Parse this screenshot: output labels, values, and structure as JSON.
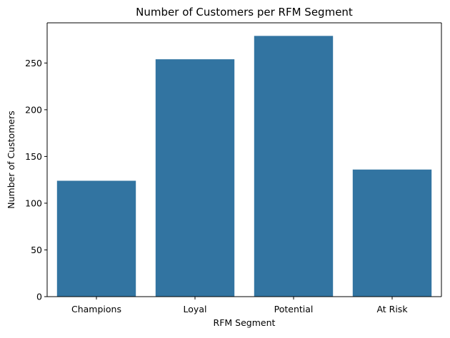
{
  "chart_data": {
    "type": "bar",
    "title": "Number of Customers per RFM Segment",
    "xlabel": "RFM Segment",
    "ylabel": "Number of Customers",
    "categories": [
      "Champions",
      "Loyal",
      "Potential",
      "At Risk"
    ],
    "values": [
      124,
      254,
      279,
      136
    ],
    "ylim": [
      0,
      293
    ],
    "yticks": [
      0,
      50,
      100,
      150,
      200,
      250
    ],
    "grid": false,
    "colors": {
      "bar": "#3274a1",
      "axis": "#000000"
    }
  }
}
